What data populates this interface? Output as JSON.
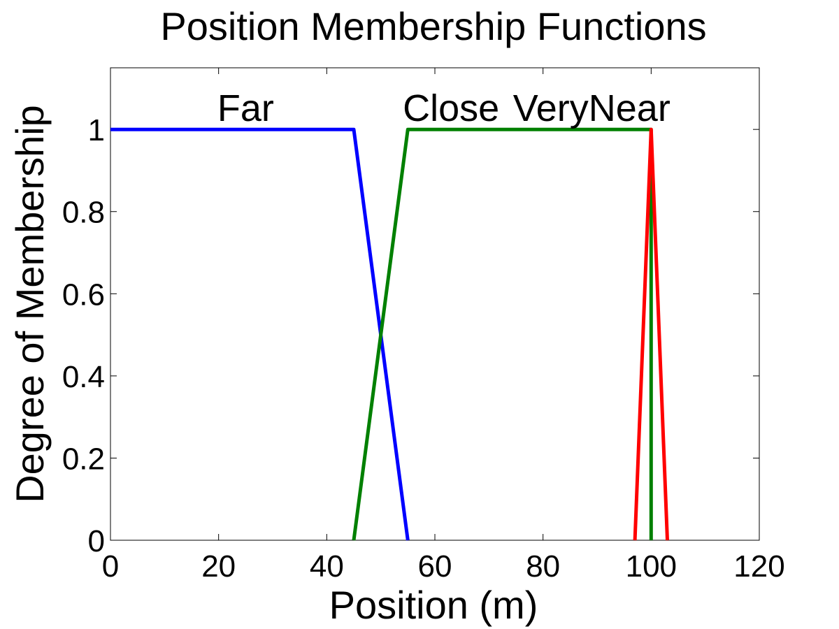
{
  "chart_data": {
    "type": "line",
    "title": "Position Membership Functions",
    "xlabel": "Position (m)",
    "ylabel": "Degree of Membership",
    "xlim": [
      0,
      120
    ],
    "ylim": [
      0,
      1.15
    ],
    "xticks": [
      0,
      20,
      40,
      60,
      80,
      100,
      120
    ],
    "yticks": [
      0,
      0.2,
      0.4,
      0.6,
      0.8,
      1
    ],
    "ytick_labels": [
      "0",
      "0.2",
      "0.4",
      "0.6",
      "0.8",
      "1"
    ],
    "grid": false,
    "series": [
      {
        "name": "Far",
        "color": "#0000ff",
        "x": [
          0,
          45,
          55
        ],
        "y": [
          1,
          1,
          0
        ]
      },
      {
        "name": "Close",
        "color": "#008000",
        "x": [
          45,
          55,
          100,
          100
        ],
        "y": [
          0,
          1,
          1,
          0
        ]
      },
      {
        "name": "VeryNear",
        "color": "#ff0000",
        "x": [
          97,
          100,
          103
        ],
        "y": [
          0,
          1,
          0
        ]
      }
    ],
    "annotations": [
      {
        "text": "Far",
        "x": 25,
        "y": 1.055
      },
      {
        "text": "Close",
        "x": 63,
        "y": 1.055
      },
      {
        "text": "VeryNear",
        "x": 89,
        "y": 1.055
      }
    ]
  }
}
